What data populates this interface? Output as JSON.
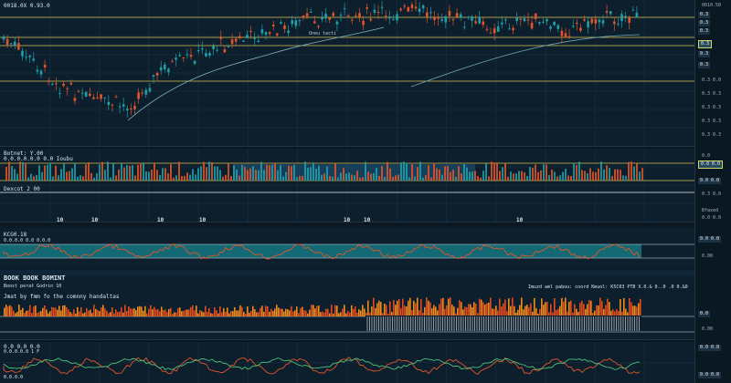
{
  "header": {
    "symbol": "0018.0X 0.93.0",
    "axis_tick": "0010.50",
    "axis_tags": [
      "0.3",
      "0.3",
      "0.3",
      "0.3",
      "0.3",
      "0.3"
    ]
  },
  "main": {
    "overlay_label": "Oneu tacti",
    "right_ticks": [
      "0.3 0.0",
      "0.3 0.3",
      "0.3 0.3",
      "0.3 0.3",
      "0.3 0.3",
      "0.3 0.3",
      "0.3 0.3"
    ]
  },
  "indicator1": {
    "label1": "Botnet: Y.00",
    "label2": "0.0.0.0.0.0 0.0 Ioubu",
    "label3": "Dexcot 2 00",
    "right_ticks": [
      "0.0",
      "0.0 0.0",
      "0.3 0.0",
      "Bfaxed",
      "0.0 0.0"
    ],
    "axis_tags": [
      "0.0 0.0",
      "0.0 0.0"
    ],
    "x_labels": [
      "10",
      "10",
      "10",
      "10",
      "10",
      "10",
      "10"
    ]
  },
  "indicator2": {
    "title": "KCG0.18",
    "subtitle": "0.0.0.0 0.0 0.0.0",
    "axis_tags": [
      "0.0 0.0",
      "0.00"
    ]
  },
  "indicator3": {
    "title": "BOOK BOOK BOMINT",
    "sub1": "Boost perat Godrin 10",
    "sub2": "Jmat by fmm fo the comnny handaltas",
    "right_text": "Imuzd aml pabou: coord  Kmuol: K5C03 PTB  X.0.& 0..0 .0 0.&0",
    "axis_tags": [
      "0.0",
      "0.00"
    ]
  },
  "indicator4": {
    "label1": "0.0 0.0 0.0",
    "label2": "0.0.0.0.0 1 F",
    "axis_tags": [
      "0.0 0.0",
      "0.0 0.0"
    ],
    "bottom": "0.0.0.0"
  },
  "colors": {
    "up": "#1fa0a8",
    "down": "#e2552a",
    "level": "#d4c24a",
    "bg": "#0d1f2d"
  }
}
